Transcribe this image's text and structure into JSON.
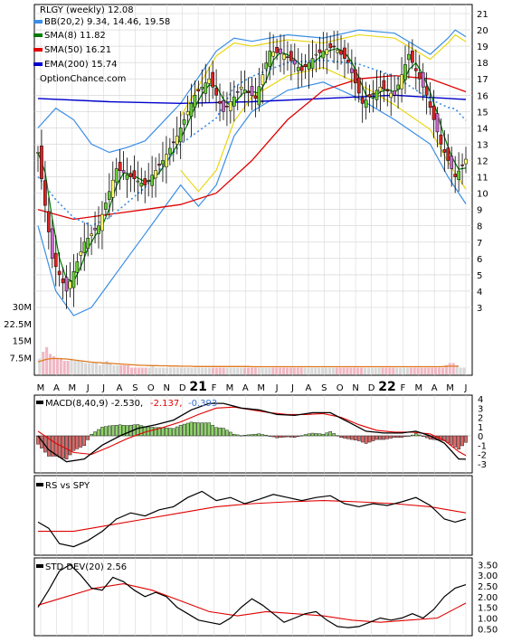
{
  "chart_data": [
    {
      "type": "candlestick",
      "panel": "price",
      "legend": [
        {
          "label": "RLGY (weekly) 12.08",
          "color": "#000000"
        },
        {
          "label": "BB(20,2) 9.34, 14.46, 19.58",
          "color": "#3a8ee6"
        },
        {
          "label": "SMA(8) 11.82",
          "color": "#007a00"
        },
        {
          "label": "SMA(50) 16.21",
          "color": "#e00000"
        },
        {
          "label": "EMA(200) 15.74",
          "color": "#0000cc"
        }
      ],
      "watermark": "OptionChance.com",
      "x_tick_labels": [
        "M",
        "A",
        "M",
        "J",
        "J",
        "A",
        "S",
        "O",
        "N",
        "D",
        "21",
        "F",
        "M",
        "A",
        "M",
        "J",
        "J",
        "A",
        "S",
        "O",
        "N",
        "D",
        "22",
        "F",
        "M",
        "A",
        "M",
        "J"
      ],
      "y_tick_labels": [
        "3",
        "4",
        "5",
        "6",
        "7",
        "8",
        "9",
        "10",
        "11",
        "12",
        "13",
        "14",
        "15",
        "16",
        "17",
        "18",
        "19",
        "20",
        "21"
      ],
      "y_range": [
        2,
        21.5
      ],
      "volume_tick_labels": [
        "30M",
        "22.5M",
        "15M",
        "7.5M"
      ],
      "close_points": [
        {
          "w": 0,
          "v": 12.5
        },
        {
          "w": 4,
          "v": 6
        },
        {
          "w": 8,
          "v": 4
        },
        {
          "w": 13,
          "v": 7
        },
        {
          "w": 17,
          "v": 8
        },
        {
          "w": 22,
          "v": 11.5
        },
        {
          "w": 26,
          "v": 11
        },
        {
          "w": 30,
          "v": 10.5
        },
        {
          "w": 35,
          "v": 12
        },
        {
          "w": 39,
          "v": 13.5
        },
        {
          "w": 44,
          "v": 16
        },
        {
          "w": 48,
          "v": 17
        },
        {
          "w": 52,
          "v": 15
        },
        {
          "w": 57,
          "v": 16.5
        },
        {
          "w": 61,
          "v": 15.8
        },
        {
          "w": 65,
          "v": 18.7
        },
        {
          "w": 69,
          "v": 18.5
        },
        {
          "w": 74,
          "v": 17.5
        },
        {
          "w": 78,
          "v": 18.5
        },
        {
          "w": 83,
          "v": 19
        },
        {
          "w": 87,
          "v": 18
        },
        {
          "w": 91,
          "v": 15.5
        },
        {
          "w": 96,
          "v": 16.5
        },
        {
          "w": 100,
          "v": 16
        },
        {
          "w": 104,
          "v": 18.5
        },
        {
          "w": 109,
          "v": 16
        },
        {
          "w": 113,
          "v": 13
        },
        {
          "w": 117,
          "v": 11
        },
        {
          "w": 120,
          "v": 12.08
        }
      ],
      "sma50_points": [
        {
          "w": 0,
          "v": 9
        },
        {
          "w": 10,
          "v": 8.4
        },
        {
          "w": 20,
          "v": 8.7
        },
        {
          "w": 30,
          "v": 9
        },
        {
          "w": 40,
          "v": 9.3
        },
        {
          "w": 50,
          "v": 10
        },
        {
          "w": 60,
          "v": 12
        },
        {
          "w": 70,
          "v": 14.5
        },
        {
          "w": 80,
          "v": 16.3
        },
        {
          "w": 90,
          "v": 17
        },
        {
          "w": 100,
          "v": 17.2
        },
        {
          "w": 110,
          "v": 17
        },
        {
          "w": 120,
          "v": 16.21
        }
      ],
      "ema200_points": [
        {
          "w": 0,
          "v": 15.8
        },
        {
          "w": 20,
          "v": 15.6
        },
        {
          "w": 40,
          "v": 15.5
        },
        {
          "w": 60,
          "v": 15.6
        },
        {
          "w": 80,
          "v": 15.8
        },
        {
          "w": 100,
          "v": 16
        },
        {
          "w": 120,
          "v": 15.74
        }
      ],
      "bb_upper_points": [
        {
          "w": 0,
          "v": 14
        },
        {
          "w": 5,
          "v": 15.2
        },
        {
          "w": 10,
          "v": 14.5
        },
        {
          "w": 15,
          "v": 13
        },
        {
          "w": 20,
          "v": 12.5
        },
        {
          "w": 25,
          "v": 12.8
        },
        {
          "w": 30,
          "v": 13.2
        },
        {
          "w": 40,
          "v": 15.5
        },
        {
          "w": 50,
          "v": 18.7
        },
        {
          "w": 55,
          "v": 19.5
        },
        {
          "w": 60,
          "v": 19.3
        },
        {
          "w": 70,
          "v": 19.7
        },
        {
          "w": 80,
          "v": 19.5
        },
        {
          "w": 90,
          "v": 20
        },
        {
          "w": 100,
          "v": 19.8
        },
        {
          "w": 110,
          "v": 18.5
        },
        {
          "w": 115,
          "v": 19.5
        },
        {
          "w": 117,
          "v": 20
        },
        {
          "w": 120,
          "v": 19.58
        }
      ],
      "bb_lower_points": [
        {
          "w": 0,
          "v": 8
        },
        {
          "w": 5,
          "v": 4
        },
        {
          "w": 10,
          "v": 2.5
        },
        {
          "w": 15,
          "v": 3
        },
        {
          "w": 20,
          "v": 4.5
        },
        {
          "w": 25,
          "v": 6
        },
        {
          "w": 30,
          "v": 7.5
        },
        {
          "w": 40,
          "v": 10.5
        },
        {
          "w": 45,
          "v": 9.2
        },
        {
          "w": 50,
          "v": 10.5
        },
        {
          "w": 55,
          "v": 13.5
        },
        {
          "w": 60,
          "v": 15
        },
        {
          "w": 70,
          "v": 16.3
        },
        {
          "w": 80,
          "v": 16.8
        },
        {
          "w": 90,
          "v": 15.8
        },
        {
          "w": 100,
          "v": 14.5
        },
        {
          "w": 110,
          "v": 13
        },
        {
          "w": 115,
          "v": 11
        },
        {
          "w": 120,
          "v": 9.34
        }
      ],
      "volume_values_m": [
        7,
        10,
        12,
        9,
        8,
        7,
        7,
        6,
        6,
        7,
        6,
        6,
        6,
        5,
        5,
        5,
        5,
        4,
        5,
        6,
        5,
        4,
        4,
        4,
        4,
        4,
        3,
        3,
        3,
        3,
        3,
        3,
        4,
        3,
        3,
        3,
        3,
        3,
        3,
        3,
        3,
        3,
        3,
        3,
        3,
        3,
        3,
        3,
        3,
        3,
        3,
        3,
        3,
        3,
        3,
        3,
        3,
        3,
        3,
        3,
        3,
        3,
        3,
        3,
        3,
        3,
        3,
        3,
        3,
        3,
        3,
        3,
        3,
        3,
        3,
        3,
        3,
        3,
        3,
        3,
        3,
        3,
        3,
        3,
        3,
        3,
        3,
        3,
        3,
        3,
        3,
        3,
        3,
        3,
        3,
        3,
        3,
        3,
        3,
        3,
        3,
        3,
        3,
        3,
        3,
        3,
        3,
        3,
        3,
        3,
        3,
        3,
        3,
        3,
        3,
        4,
        5,
        5,
        4,
        3,
        3
      ],
      "volume_avg_m": [
        5.5,
        6,
        6.5,
        6.8,
        7,
        7,
        7,
        6.9,
        6.8,
        6.6,
        6.4,
        6.2,
        6,
        5.8,
        5.6,
        5.4,
        5.3,
        5.2,
        5.1,
        5,
        4.9,
        4.8,
        4.7,
        4.6,
        4.5,
        4.4,
        4.3,
        4.2,
        4.1,
        4.0,
        4.0,
        3.9,
        3.9,
        3.9,
        3.8,
        3.8,
        3.8,
        3.7,
        3.7,
        3.7,
        3.6,
        3.6,
        3.6,
        3.6,
        3.5,
        3.5,
        3.5,
        3.5,
        3.5,
        3.5,
        3.5,
        3.5,
        3.5,
        3.5,
        3.5,
        3.5,
        3.5,
        3.5,
        3.5,
        3.5,
        3.4,
        3.4,
        3.4,
        3.4,
        3.4,
        3.4,
        3.4,
        3.4,
        3.4,
        3.4,
        3.4,
        3.4,
        3.4,
        3.4,
        3.4,
        3.4,
        3.4,
        3.4,
        3.4,
        3.4,
        3.4,
        3.4,
        3.4,
        3.4,
        3.4,
        3.4,
        3.4,
        3.4,
        3.4,
        3.4,
        3.4,
        3.4,
        3.4,
        3.4,
        3.4,
        3.4,
        3.4,
        3.4,
        3.4,
        3.4,
        3.4,
        3.4,
        3.4,
        3.4,
        3.4,
        3.4,
        3.4,
        3.4,
        3.4,
        3.4,
        3.4,
        3.4,
        3.4,
        3.4,
        3.5,
        3.6,
        3.6,
        3.6,
        3.6
      ]
    },
    {
      "type": "line",
      "panel": "macd",
      "legend_text": "MACD(8,40,9) -2.530,",
      "signal_text": "-2.137,",
      "hist_text": "-0.393",
      "y_tick_labels": [
        "4",
        "3",
        "2",
        "1",
        "0",
        "-1",
        "-2",
        "-3"
      ],
      "y_range": [
        -3.6,
        4.4
      ],
      "macd_points": [
        {
          "w": 0,
          "v": 0
        },
        {
          "w": 3,
          "v": -1.5
        },
        {
          "w": 8,
          "v": -2.8
        },
        {
          "w": 13,
          "v": -2.5
        },
        {
          "w": 18,
          "v": -1
        },
        {
          "w": 23,
          "v": 0
        },
        {
          "w": 28,
          "v": 0.8
        },
        {
          "w": 33,
          "v": 1.2
        },
        {
          "w": 38,
          "v": 1.7
        },
        {
          "w": 43,
          "v": 2.8
        },
        {
          "w": 48,
          "v": 3.5
        },
        {
          "w": 52,
          "v": 3.5
        },
        {
          "w": 57,
          "v": 3
        },
        {
          "w": 62,
          "v": 2.8
        },
        {
          "w": 67,
          "v": 2.3
        },
        {
          "w": 72,
          "v": 2.2
        },
        {
          "w": 77,
          "v": 2.5
        },
        {
          "w": 82,
          "v": 2.5
        },
        {
          "w": 87,
          "v": 1.5
        },
        {
          "w": 92,
          "v": 0.5
        },
        {
          "w": 97,
          "v": 0.3
        },
        {
          "w": 102,
          "v": 0.3
        },
        {
          "w": 106,
          "v": 0.5
        },
        {
          "w": 110,
          "v": 0
        },
        {
          "w": 114,
          "v": -0.8
        },
        {
          "w": 118,
          "v": -2.5
        },
        {
          "w": 120,
          "v": -2.53
        }
      ],
      "signal_points": [
        {
          "w": 0,
          "v": 0.5
        },
        {
          "w": 5,
          "v": -0.8
        },
        {
          "w": 10,
          "v": -1.8
        },
        {
          "w": 15,
          "v": -2
        },
        {
          "w": 20,
          "v": -1.2
        },
        {
          "w": 25,
          "v": -0.3
        },
        {
          "w": 30,
          "v": 0.4
        },
        {
          "w": 35,
          "v": 0.9
        },
        {
          "w": 40,
          "v": 1.5
        },
        {
          "w": 45,
          "v": 2.3
        },
        {
          "w": 50,
          "v": 3
        },
        {
          "w": 55,
          "v": 3.1
        },
        {
          "w": 60,
          "v": 2.8
        },
        {
          "w": 65,
          "v": 2.5
        },
        {
          "w": 70,
          "v": 2.3
        },
        {
          "w": 75,
          "v": 2.3
        },
        {
          "w": 80,
          "v": 2.4
        },
        {
          "w": 85,
          "v": 2
        },
        {
          "w": 90,
          "v": 1.2
        },
        {
          "w": 95,
          "v": 0.6
        },
        {
          "w": 100,
          "v": 0.4
        },
        {
          "w": 105,
          "v": 0.4
        },
        {
          "w": 110,
          "v": 0.2
        },
        {
          "w": 114,
          "v": -0.5
        },
        {
          "w": 118,
          "v": -1.7
        },
        {
          "w": 120,
          "v": -2.137
        }
      ]
    },
    {
      "type": "line",
      "panel": "rs",
      "legend_text": "RS vs SPY",
      "rs_points": [
        {
          "w": 0,
          "v": 0.45
        },
        {
          "w": 3,
          "v": 0.35
        },
        {
          "w": 6,
          "v": 0.1
        },
        {
          "w": 10,
          "v": 0.05
        },
        {
          "w": 14,
          "v": 0.15
        },
        {
          "w": 18,
          "v": 0.3
        },
        {
          "w": 22,
          "v": 0.5
        },
        {
          "w": 26,
          "v": 0.6
        },
        {
          "w": 30,
          "v": 0.55
        },
        {
          "w": 34,
          "v": 0.65
        },
        {
          "w": 38,
          "v": 0.7
        },
        {
          "w": 42,
          "v": 0.85
        },
        {
          "w": 46,
          "v": 0.95
        },
        {
          "w": 50,
          "v": 0.8
        },
        {
          "w": 54,
          "v": 0.85
        },
        {
          "w": 58,
          "v": 0.75
        },
        {
          "w": 62,
          "v": 0.82
        },
        {
          "w": 66,
          "v": 0.9
        },
        {
          "w": 70,
          "v": 0.85
        },
        {
          "w": 74,
          "v": 0.8
        },
        {
          "w": 78,
          "v": 0.85
        },
        {
          "w": 82,
          "v": 0.88
        },
        {
          "w": 86,
          "v": 0.75
        },
        {
          "w": 90,
          "v": 0.7
        },
        {
          "w": 94,
          "v": 0.75
        },
        {
          "w": 98,
          "v": 0.72
        },
        {
          "w": 102,
          "v": 0.78
        },
        {
          "w": 106,
          "v": 0.85
        },
        {
          "w": 110,
          "v": 0.72
        },
        {
          "w": 114,
          "v": 0.5
        },
        {
          "w": 117,
          "v": 0.45
        },
        {
          "w": 120,
          "v": 0.5
        }
      ],
      "rs_avg_points": [
        {
          "w": 0,
          "v": 0.3
        },
        {
          "w": 10,
          "v": 0.3
        },
        {
          "w": 20,
          "v": 0.4
        },
        {
          "w": 30,
          "v": 0.5
        },
        {
          "w": 40,
          "v": 0.6
        },
        {
          "w": 50,
          "v": 0.7
        },
        {
          "w": 60,
          "v": 0.75
        },
        {
          "w": 70,
          "v": 0.78
        },
        {
          "w": 80,
          "v": 0.8
        },
        {
          "w": 90,
          "v": 0.78
        },
        {
          "w": 100,
          "v": 0.75
        },
        {
          "w": 110,
          "v": 0.7
        },
        {
          "w": 120,
          "v": 0.6
        }
      ]
    },
    {
      "type": "line",
      "panel": "std",
      "legend_text": "STD DEV(20) 2.56",
      "y_tick_labels": [
        "3.50",
        "3.00",
        "2.50",
        "2.00",
        "1.50",
        "1.00",
        "0.50"
      ],
      "y_range": [
        0.3,
        3.6
      ],
      "std_points": [
        {
          "w": 0,
          "v": 1.5
        },
        {
          "w": 3,
          "v": 2.3
        },
        {
          "w": 6,
          "v": 3.2
        },
        {
          "w": 9,
          "v": 3.5
        },
        {
          "w": 12,
          "v": 3
        },
        {
          "w": 15,
          "v": 2.4
        },
        {
          "w": 18,
          "v": 2.3
        },
        {
          "w": 21,
          "v": 2.9
        },
        {
          "w": 24,
          "v": 2.7
        },
        {
          "w": 27,
          "v": 2.3
        },
        {
          "w": 30,
          "v": 2
        },
        {
          "w": 33,
          "v": 2.2
        },
        {
          "w": 36,
          "v": 2
        },
        {
          "w": 39,
          "v": 1.5
        },
        {
          "w": 42,
          "v": 1.2
        },
        {
          "w": 45,
          "v": 0.9
        },
        {
          "w": 48,
          "v": 0.8
        },
        {
          "w": 51,
          "v": 0.7
        },
        {
          "w": 54,
          "v": 1
        },
        {
          "w": 57,
          "v": 1.5
        },
        {
          "w": 60,
          "v": 1.9
        },
        {
          "w": 63,
          "v": 1.6
        },
        {
          "w": 66,
          "v": 1.2
        },
        {
          "w": 69,
          "v": 0.8
        },
        {
          "w": 72,
          "v": 1
        },
        {
          "w": 75,
          "v": 1.2
        },
        {
          "w": 78,
          "v": 1.3
        },
        {
          "w": 81,
          "v": 0.9
        },
        {
          "w": 84,
          "v": 0.6
        },
        {
          "w": 87,
          "v": 0.55
        },
        {
          "w": 90,
          "v": 0.6
        },
        {
          "w": 93,
          "v": 0.8
        },
        {
          "w": 96,
          "v": 1
        },
        {
          "w": 99,
          "v": 0.9
        },
        {
          "w": 102,
          "v": 1
        },
        {
          "w": 105,
          "v": 1.2
        },
        {
          "w": 108,
          "v": 1
        },
        {
          "w": 111,
          "v": 1.4
        },
        {
          "w": 114,
          "v": 2
        },
        {
          "w": 117,
          "v": 2.4
        },
        {
          "w": 120,
          "v": 2.56
        }
      ],
      "std_avg_points": [
        {
          "w": 0,
          "v": 1.6
        },
        {
          "w": 8,
          "v": 2
        },
        {
          "w": 16,
          "v": 2.4
        },
        {
          "w": 24,
          "v": 2.6
        },
        {
          "w": 32,
          "v": 2.3
        },
        {
          "w": 40,
          "v": 1.8
        },
        {
          "w": 48,
          "v": 1.3
        },
        {
          "w": 56,
          "v": 1.1
        },
        {
          "w": 64,
          "v": 1.3
        },
        {
          "w": 72,
          "v": 1.2
        },
        {
          "w": 80,
          "v": 1.1
        },
        {
          "w": 88,
          "v": 0.9
        },
        {
          "w": 96,
          "v": 0.8
        },
        {
          "w": 104,
          "v": 0.9
        },
        {
          "w": 112,
          "v": 1
        },
        {
          "w": 120,
          "v": 1.7
        }
      ]
    }
  ]
}
